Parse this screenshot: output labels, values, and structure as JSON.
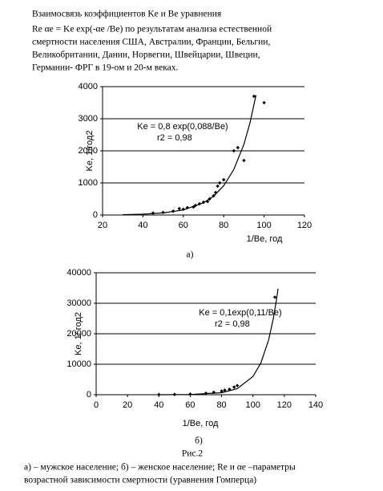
{
  "header": {
    "lines": [
      "Взаимосвязь коэффициентов Ke и Be уравнения",
      "Re αe = Ke exp(-αe /Be) по результатам анализа естественной",
      "смертности населения США, Австралии, Франции, Бельгии,",
      "Великобритании, Дании, Норвегии,  Швейцарии, Швеции,",
      "Германии- ФРГ в 19-ом и 20-м веках."
    ]
  },
  "chart_data": [
    {
      "type": "scatter",
      "ylabel": "Ke, 1/год2",
      "xlabel": "1/Be, год",
      "annotations": [
        "Ke = 0,8 exp(0,088/Be)",
        "r2 = 0,98"
      ],
      "panel_label": "а)",
      "xlim": [
        20,
        120
      ],
      "xticks": [
        20,
        40,
        60,
        80,
        100,
        120
      ],
      "ylim": [
        0,
        4000
      ],
      "yticks": [
        0,
        1000,
        2000,
        3000,
        4000
      ],
      "grid": true,
      "series": [
        {
          "type": "scatter",
          "color": "#000000",
          "x": [
            45,
            50,
            55,
            58,
            60,
            62,
            65,
            66,
            68,
            70,
            72,
            73,
            75,
            76,
            77,
            78,
            80,
            85,
            87,
            90,
            95,
            100
          ],
          "values": [
            60,
            80,
            120,
            200,
            180,
            230,
            250,
            300,
            350,
            400,
            420,
            500,
            600,
            700,
            900,
            1000,
            1100,
            2000,
            2100,
            1700,
            3700,
            3500
          ]
        },
        {
          "type": "line",
          "color": "#000000",
          "x": [
            30,
            40,
            50,
            60,
            70,
            75,
            80,
            85,
            90,
            93,
            96
          ],
          "values": [
            11,
            27,
            65,
            157,
            379,
            588,
            913,
            1418,
            2202,
            2868,
            3736
          ]
        }
      ]
    },
    {
      "type": "scatter",
      "ylabel": "Ke, 1/ год2",
      "xlabel": "1/Be, год",
      "annotations": [
        "Ke = 0,1exp(0,11/Be)",
        "r2 = 0,98"
      ],
      "panel_label": "б)",
      "xlim": [
        0,
        140
      ],
      "xticks": [
        0,
        20,
        40,
        60,
        80,
        100,
        120,
        140
      ],
      "ylim": [
        0,
        40000
      ],
      "yticks": [
        0,
        10000,
        20000,
        30000,
        40000
      ],
      "grid": true,
      "series": [
        {
          "type": "scatter",
          "color": "#000000",
          "x": [
            40,
            50,
            60,
            70,
            75,
            80,
            82,
            85,
            88,
            90,
            114
          ],
          "values": [
            50,
            100,
            200,
            500,
            800,
            1200,
            1500,
            1800,
            2500,
            3000,
            32000
          ]
        },
        {
          "type": "line",
          "color": "#000000",
          "x": [
            40,
            60,
            80,
            90,
            100,
            105,
            110,
            113,
            115,
            116
          ],
          "values": [
            8,
            74,
            663,
            1993,
            5987,
            10378,
            17987,
            25019,
            31176,
            34800
          ]
        }
      ]
    }
  ],
  "caption": {
    "figure": "Рис.2",
    "lines": [
      "а) – мужское население; б) – женское население; Re и αe –параметры",
      "возрастной зависимости смертности (уравнения Гомперца)"
    ]
  }
}
